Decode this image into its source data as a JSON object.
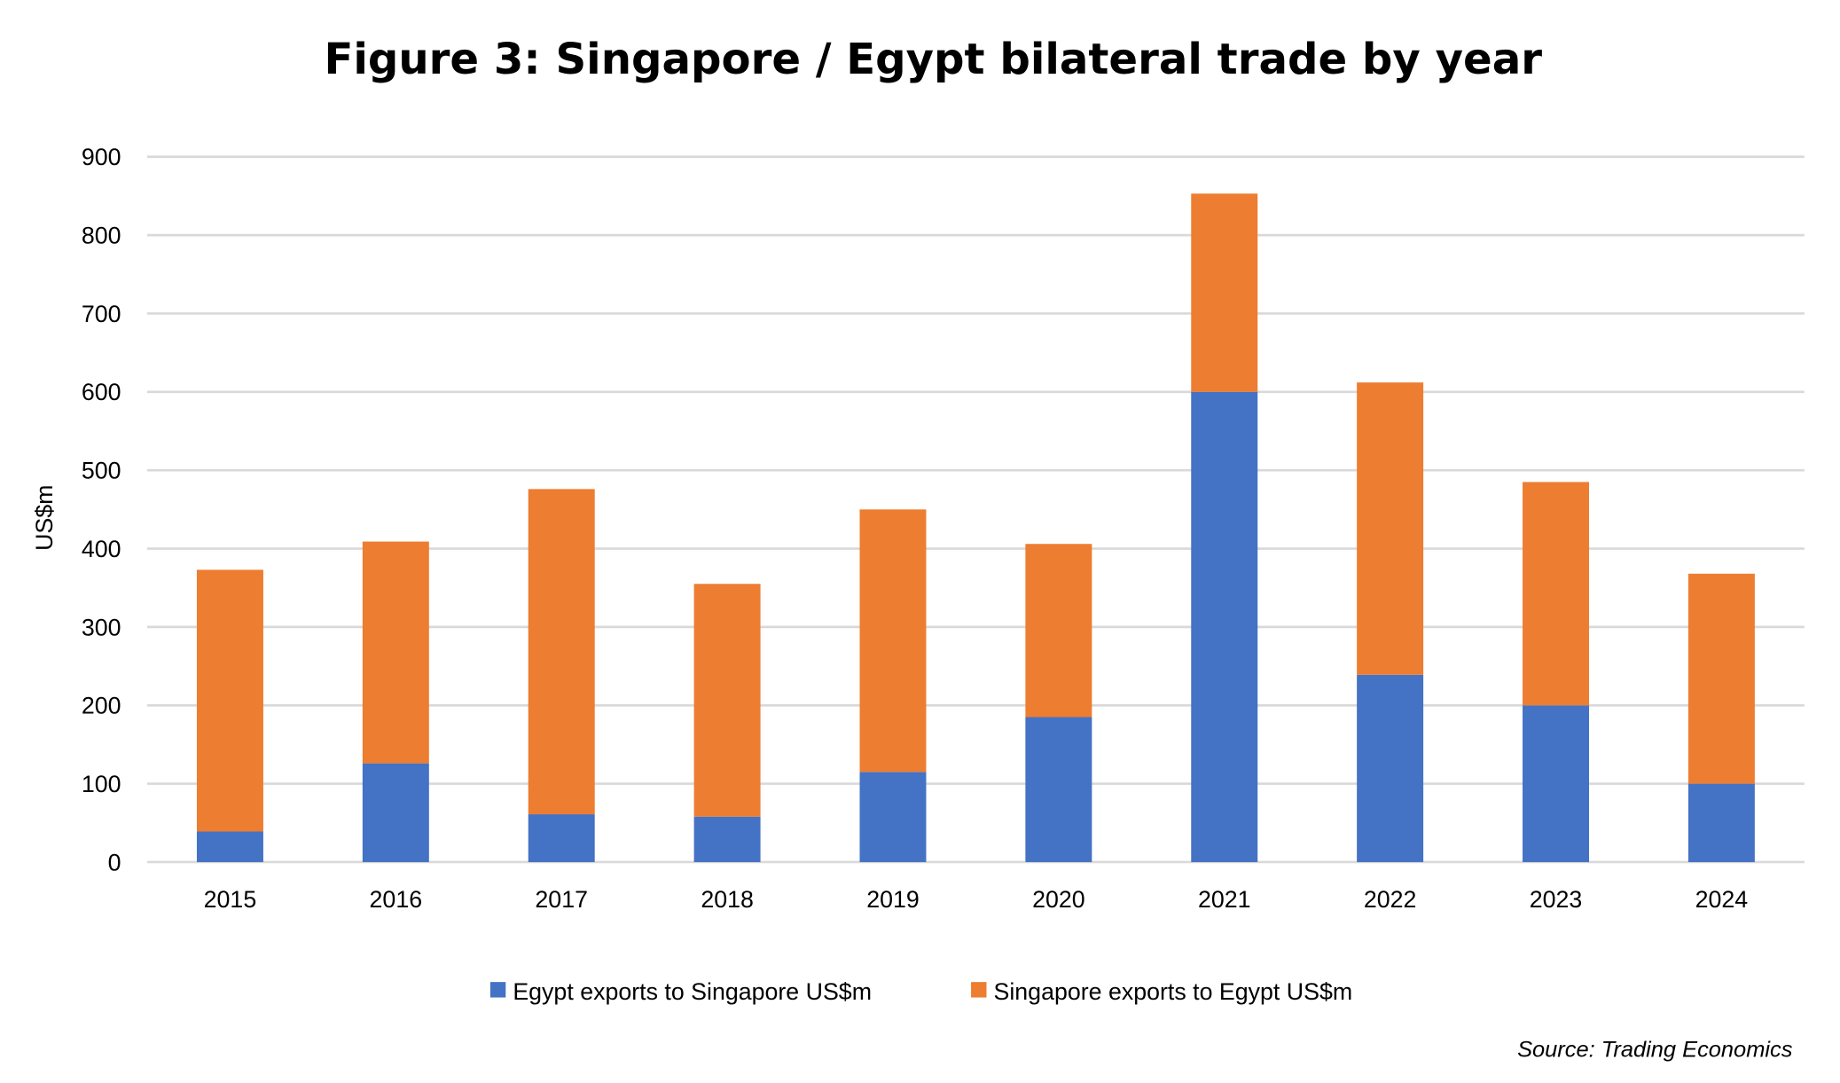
{
  "chart_data": {
    "type": "bar",
    "stacked": true,
    "title": "Figure 3: Singapore / Egypt bilateral trade by year",
    "xlabel": "",
    "ylabel": "US$m",
    "ylim": [
      0,
      900
    ],
    "yticks": [
      0,
      100,
      200,
      300,
      400,
      500,
      600,
      700,
      800,
      900
    ],
    "grid": true,
    "legend": "bottom",
    "categories": [
      "2015",
      "2016",
      "2017",
      "2018",
      "2019",
      "2020",
      "2021",
      "2022",
      "2023",
      "2024"
    ],
    "series": [
      {
        "name": "Egypt exports to Singapore US$m",
        "color": "#4472c4",
        "values": [
          39,
          126,
          61,
          58,
          115,
          185,
          600,
          239,
          200,
          100
        ]
      },
      {
        "name": "Singapore exports to Egypt  US$m",
        "color": "#ed7d31",
        "values": [
          334,
          283,
          415,
          297,
          335,
          221,
          253,
          373,
          285,
          268
        ]
      }
    ],
    "source": "Source: Trading Economics"
  }
}
